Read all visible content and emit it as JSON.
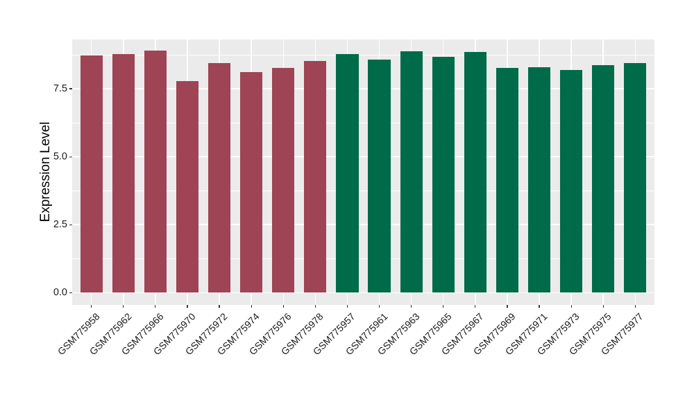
{
  "chart_data": {
    "type": "bar",
    "title": "",
    "xlabel": "",
    "ylabel": "Expression Level",
    "ylim": [
      -0.45,
      9.31
    ],
    "yticks": [
      0,
      2.5,
      5,
      7.5
    ],
    "ytick_labels": [
      "0.0",
      "2.5",
      "5.0",
      "7.5"
    ],
    "minor_gridlines": [
      1.25,
      3.75,
      6.25,
      8.75
    ],
    "grid": "on",
    "legend_position": "none",
    "bar_width_ratio": 0.7,
    "categories": [
      "GSM775958",
      "GSM775962",
      "GSM775966",
      "GSM775970",
      "GSM775972",
      "GSM775974",
      "GSM775976",
      "GSM775978",
      "GSM775957",
      "GSM775961",
      "GSM775963",
      "GSM775965",
      "GSM775967",
      "GSM775969",
      "GSM775971",
      "GSM775973",
      "GSM775975",
      "GSM775977"
    ],
    "values": [
      8.72,
      8.78,
      8.89,
      7.79,
      8.45,
      8.1,
      8.26,
      8.51,
      8.78,
      8.57,
      8.88,
      8.67,
      8.85,
      8.27,
      8.3,
      8.18,
      8.37,
      8.45
    ],
    "groups": [
      "maroon",
      "maroon",
      "maroon",
      "maroon",
      "maroon",
      "maroon",
      "maroon",
      "maroon",
      "green",
      "green",
      "green",
      "green",
      "green",
      "green",
      "green",
      "green",
      "green",
      "green"
    ],
    "group_colors": {
      "maroon": "#9F4454",
      "green": "#006B48"
    }
  },
  "style": {
    "figure_bg": "#FFFFFF",
    "panel_bg": "#EBEBEB",
    "grid_color": "#FFFFFF",
    "tick_mark_color": "#333333",
    "axis_text_color": "#1A1A1A",
    "axis_title_color": "#000000"
  }
}
